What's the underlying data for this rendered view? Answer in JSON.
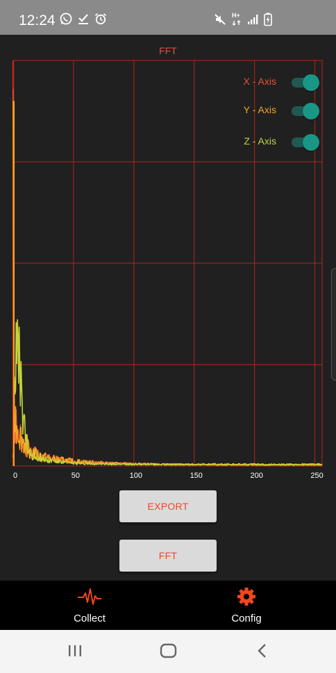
{
  "status_bar": {
    "time": "12:24",
    "left_icons": [
      "whatsapp-icon",
      "download-done-icon",
      "alarm-icon"
    ],
    "right_icons": [
      "mute-icon",
      "network-hplus-icon",
      "signal-icon",
      "battery-charging-icon"
    ],
    "network_label": "H+"
  },
  "chart_data": {
    "type": "line",
    "title": "FFT",
    "xlim": [
      0,
      256
    ],
    "ylim": [
      0,
      1.0
    ],
    "x_ticks": [
      0,
      50,
      100,
      150,
      200,
      250
    ],
    "grid": true,
    "series": [
      {
        "name": "X - Axis",
        "color": "#e8503a",
        "peak_x": 0,
        "peak_y": 0.93
      },
      {
        "name": "Y - Axis",
        "color": "#f5a623",
        "peak_x": 0,
        "peak_y": 0.9
      },
      {
        "name": "Z - Axis",
        "color": "#c6d23a",
        "peak_x": 4,
        "peak_y": 0.3
      }
    ]
  },
  "toggles": [
    {
      "label": "X - Axis",
      "on": true,
      "color": "#e8503a"
    },
    {
      "label": "Y - Axis",
      "on": true,
      "color": "#f5a623"
    },
    {
      "label": "Z - Axis",
      "on": true,
      "color": "#c6d23a"
    }
  ],
  "buttons": {
    "export": "EXPORT",
    "fft": "FFT"
  },
  "bottom_nav": [
    {
      "label": "Collect",
      "icon": "pulse-icon",
      "color": "#f2461f"
    },
    {
      "label": "Config",
      "icon": "gear-icon",
      "color": "#f2461f"
    }
  ],
  "system_nav": [
    "recents-icon",
    "home-icon",
    "back-icon"
  ]
}
